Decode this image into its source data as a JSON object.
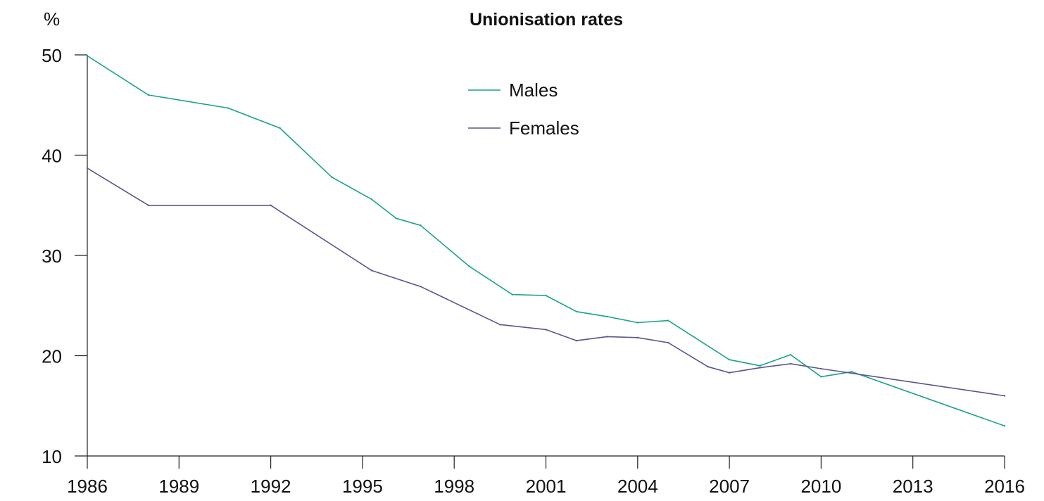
{
  "chart_data": {
    "type": "line",
    "title": "Unionisation rates",
    "ylabel": "%",
    "xlabel": "",
    "xlim": [
      1986,
      2016
    ],
    "ylim": [
      10,
      50
    ],
    "x_ticks": [
      "1986",
      "1989",
      "1992",
      "1995",
      "1998",
      "2001",
      "2004",
      "2007",
      "2010",
      "2013",
      "2016"
    ],
    "x_tick_values": [
      1986,
      1989,
      1992,
      1995,
      1998,
      2001,
      2004,
      2007,
      2010,
      2013,
      2016
    ],
    "y_ticks": [
      "10",
      "20",
      "30",
      "40",
      "50"
    ],
    "y_tick_values": [
      10,
      20,
      30,
      40,
      50
    ],
    "grid": false,
    "legend_position": "top-center",
    "series": [
      {
        "name": "Males",
        "color": "#1aa38a",
        "x": [
          1986,
          1988,
          1990.6,
          1992.3,
          1994,
          1995.3,
          1996.1,
          1996.9,
          1998.5,
          1999.9,
          2001,
          2002,
          2003,
          2004,
          2005,
          2007,
          2008,
          2009,
          2010,
          2011,
          2016
        ],
        "y": [
          49.9,
          46.0,
          44.7,
          42.7,
          37.8,
          35.6,
          33.7,
          33.0,
          28.9,
          26.1,
          26.0,
          24.4,
          23.9,
          23.3,
          23.5,
          19.6,
          19.0,
          20.1,
          17.9,
          18.4,
          13.0
        ]
      },
      {
        "name": "Females",
        "color": "#5a5590",
        "x": [
          1986,
          1988,
          1992,
          1995.3,
          1996.9,
          1999.5,
          2001,
          2002,
          2003,
          2004,
          2005,
          2006.3,
          2007,
          2008,
          2009,
          2010,
          2016
        ],
        "y": [
          38.7,
          35.0,
          35.0,
          28.5,
          26.9,
          23.1,
          22.6,
          21.5,
          21.9,
          21.8,
          21.3,
          18.9,
          18.3,
          18.8,
          19.2,
          18.7,
          16.0
        ]
      }
    ]
  }
}
